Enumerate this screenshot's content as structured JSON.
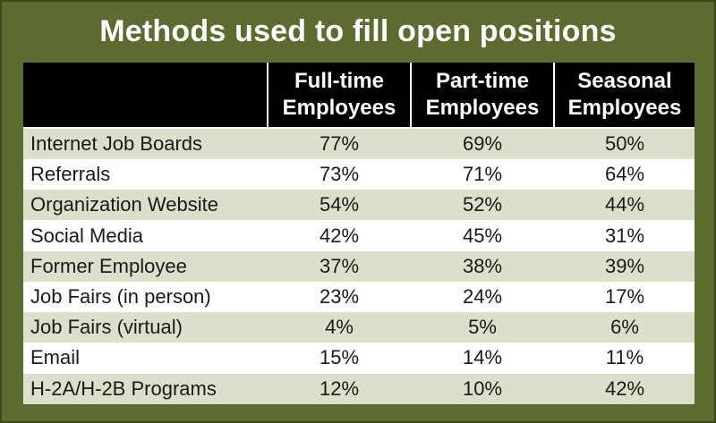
{
  "chart_data": {
    "type": "table",
    "title": "Methods used to fill open positions",
    "columns": [
      {
        "line1": "Full-time",
        "line2": "Employees"
      },
      {
        "line1": "Part-time",
        "line2": "Employees"
      },
      {
        "line1": "Seasonal",
        "line2": "Employees"
      }
    ],
    "rows": [
      {
        "label": "Internet Job Boards",
        "values": [
          "77%",
          "69%",
          "50%"
        ]
      },
      {
        "label": "Referrals",
        "values": [
          "73%",
          "71%",
          "64%"
        ]
      },
      {
        "label": "Organization Website",
        "values": [
          "54%",
          "52%",
          "44%"
        ]
      },
      {
        "label": "Social Media",
        "values": [
          "42%",
          "45%",
          "31%"
        ]
      },
      {
        "label": "Former Employee",
        "values": [
          "37%",
          "38%",
          "39%"
        ]
      },
      {
        "label": "Job Fairs (in person)",
        "values": [
          "23%",
          "24%",
          "17%"
        ]
      },
      {
        "label": "Job Fairs (virtual)",
        "values": [
          "4%",
          "5%",
          "6%"
        ]
      },
      {
        "label": "Email",
        "values": [
          "15%",
          "14%",
          "11%"
        ]
      },
      {
        "label": "H-2A/H-2B Programs",
        "values": [
          "12%",
          "10%",
          "42%"
        ]
      }
    ]
  },
  "colors": {
    "frame": "#5c6b2e",
    "header_bg": "#000000",
    "row_shaded": "#dcdfca",
    "row_plain": "#ffffff"
  }
}
